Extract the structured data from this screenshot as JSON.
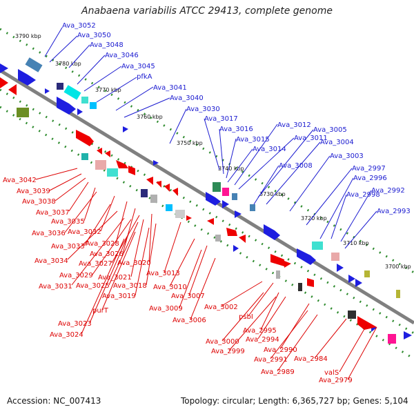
{
  "title": "Anabaena variabilis ATCC 29413, complete genome",
  "footer": {
    "accession": "Accession: NC_007413",
    "summary": "Topology: circular; Length: 6,365,727 bp; Genes: 5,104"
  },
  "colors": {
    "forward": "#1e1ee0",
    "reverse": "#ee0000",
    "backbone": "#808080",
    "ruler": "#2e8b2e"
  },
  "ticks": [
    "3790 kbp",
    "3780 kbp",
    "3770 kbp",
    "3760 kbp",
    "3750 kbp",
    "3740 kbp",
    "3730 kbp",
    "3720 kbp",
    "3710 kbp",
    "3700 kbp"
  ],
  "forward_genes": [
    "Ava_3052",
    "Ava_3050",
    "Ava_3048",
    "Ava_3046",
    "Ava_3045",
    "pfkA",
    "Ava_3041",
    "Ava_3040",
    "Ava_3030",
    "Ava_3017",
    "Ava_3016",
    "Ava_3015",
    "Ava_3014",
    "Ava_3012",
    "Ava_3011",
    "Ava_3008",
    "Ava_3005",
    "Ava_3004",
    "Ava_3003",
    "Ava_2997",
    "Ava_2996",
    "Ava_2998",
    "Ava_2992",
    "Ava_2993"
  ],
  "reverse_genes": [
    "Ava_3042",
    "Ava_3039",
    "Ava_3038",
    "Ava_3037",
    "Ava_3035",
    "Ava_3036",
    "Ava_3032",
    "Ava_3033",
    "Ava_3028",
    "Ava_3026",
    "Ava_3034",
    "Ava_3027",
    "Ava_3020",
    "Ava_3029",
    "Ava_3021",
    "Ava_3025",
    "Ava_3031",
    "Ava_3018",
    "Ava_3019",
    "Ava_3013",
    "Ava_3010",
    "Ava_3007",
    "Ava_3009",
    "Ava_3002",
    "Ava_3006",
    "psbI",
    "purT",
    "Ava_2995",
    "Ava_3000",
    "Ava_2994",
    "Ava_2999",
    "Ava_2990",
    "Ava_2991",
    "Ava_2984",
    "Ava_2989",
    "valS",
    "Ava_2979",
    "Ava_3023",
    "Ava_3024"
  ]
}
